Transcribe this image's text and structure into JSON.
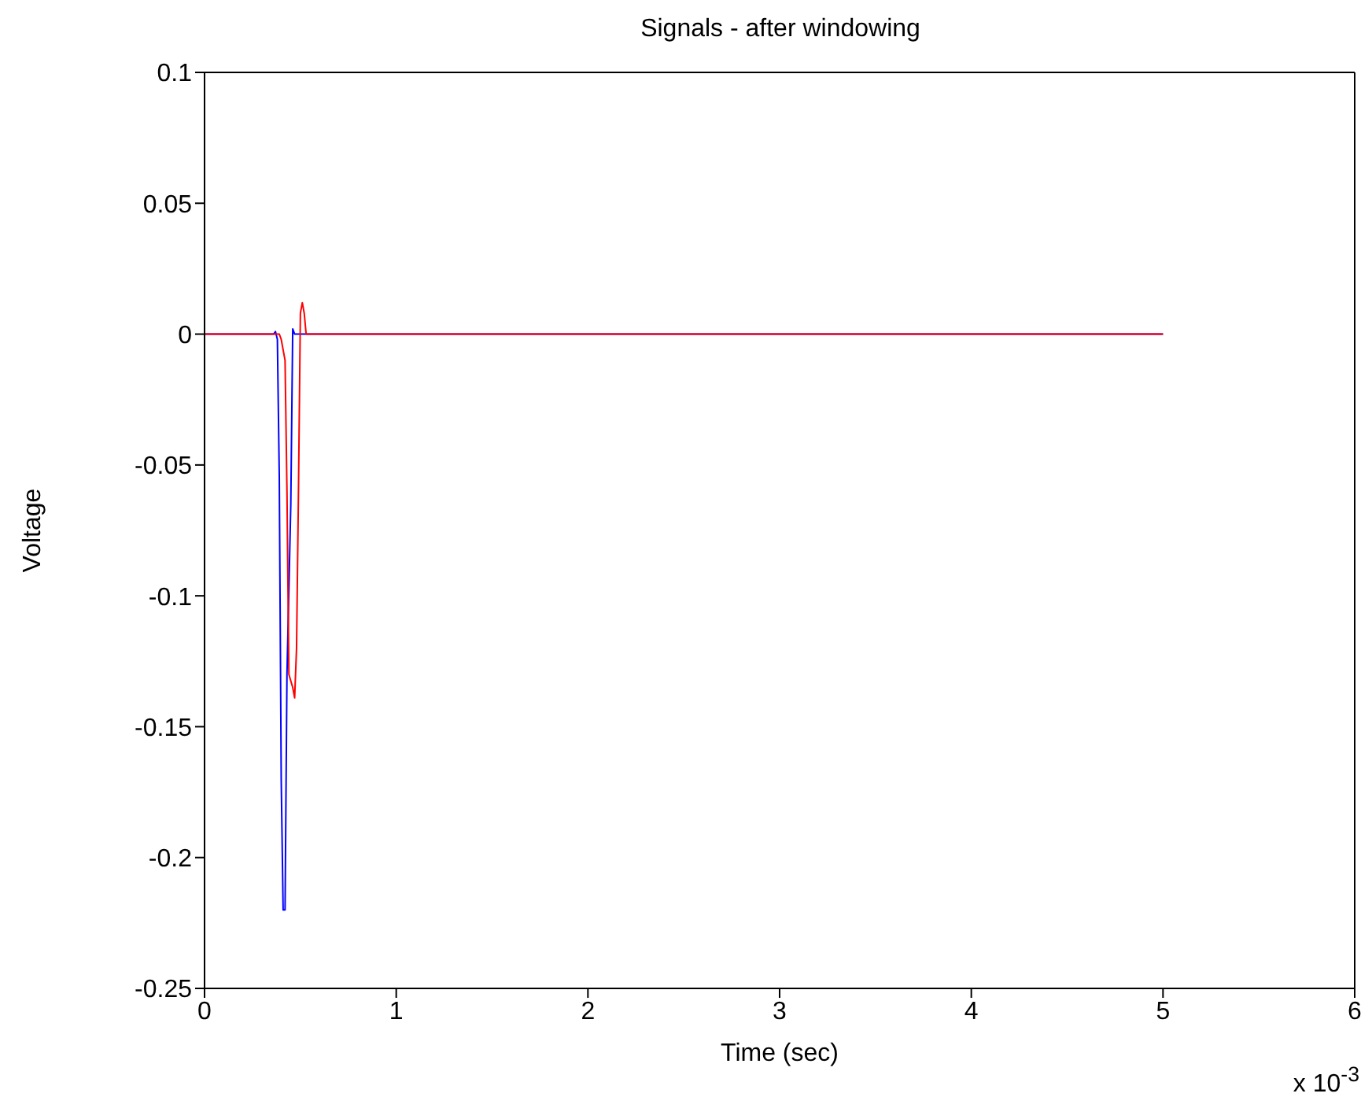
{
  "chart_data": {
    "type": "line",
    "title": "Signals - after windowing",
    "xlabel": "Time (sec)",
    "ylabel": "Voltage",
    "annotations": [
      "x 10$^{-3}$"
    ],
    "xlim": [
      0,
      6
    ],
    "xticks": [
      0,
      1,
      2,
      3,
      4,
      5,
      6
    ],
    "ylim": [
      -0.25,
      0.1
    ],
    "yticks": [
      -0.25,
      -0.2,
      -0.15,
      -0.1,
      -0.05,
      0,
      0.05,
      0.1
    ],
    "grid": false,
    "marker": "none",
    "line_style": "solid",
    "series": [
      {
        "color": "#0000ff",
        "x": [
          0,
          0.36,
          0.37,
          0.38,
          0.39,
          0.4,
          0.41,
          0.42,
          0.43,
          0.45,
          0.46,
          0.47,
          0.5,
          5
        ],
        "values": [
          0,
          0,
          0.001,
          -0.002,
          -0.055,
          -0.17,
          -0.22,
          -0.22,
          -0.13,
          -0.065,
          0.002,
          0,
          0,
          0
        ]
      },
      {
        "color": "#ff0000",
        "x": [
          0,
          0.39,
          0.4,
          0.42,
          0.43,
          0.44,
          0.46,
          0.47,
          0.48,
          0.49,
          0.5,
          0.51,
          0.52,
          0.53,
          5
        ],
        "values": [
          0,
          0,
          -0.002,
          -0.01,
          -0.06,
          -0.13,
          -0.135,
          -0.139,
          -0.12,
          -0.06,
          0.008,
          0.012,
          0.008,
          0,
          0
        ]
      }
    ]
  }
}
